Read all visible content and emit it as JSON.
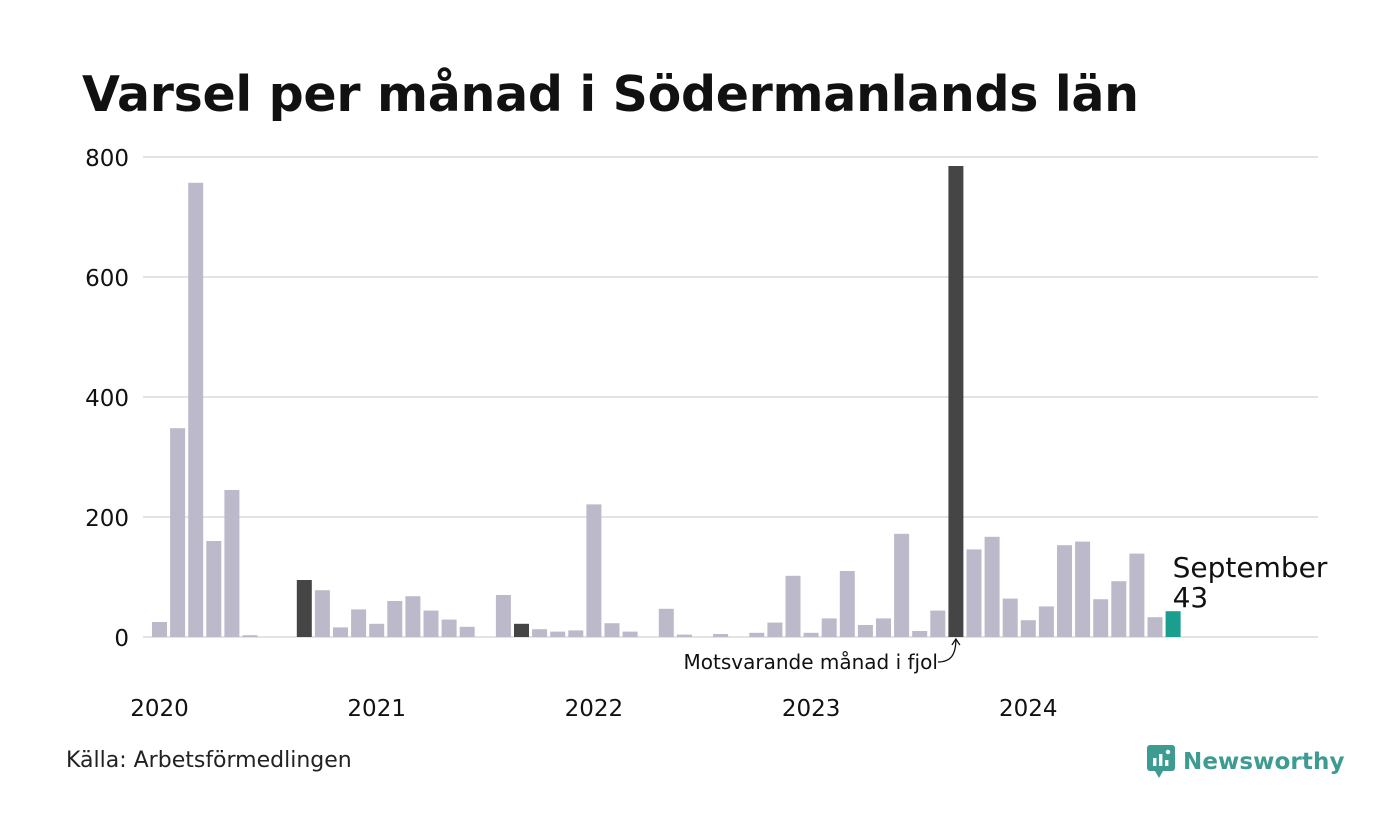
{
  "chart_data": {
    "type": "bar",
    "title": "Varsel per månad i Södermanlands län",
    "xlabel": "",
    "ylabel": "",
    "ylim": [
      0,
      800
    ],
    "yticks": [
      0,
      200,
      400,
      600,
      800
    ],
    "grid": true,
    "year_labels": [
      "2020",
      "2021",
      "2022",
      "2023",
      "2024"
    ],
    "start_month": "2020-01",
    "values": [
      25,
      348,
      757,
      160,
      245,
      3,
      0,
      0,
      95,
      78,
      16,
      46,
      22,
      60,
      68,
      44,
      29,
      17,
      0,
      70,
      22,
      13,
      9,
      11,
      221,
      23,
      9,
      0,
      47,
      4,
      0,
      5,
      0,
      7,
      24,
      102,
      7,
      31,
      110,
      20,
      31,
      172,
      10,
      44,
      785,
      146,
      167,
      64,
      28,
      51,
      153,
      159,
      63,
      93,
      139,
      33,
      43
    ],
    "highlight_dark": [
      "2020-09",
      "2021-09",
      "2023-09"
    ],
    "highlight_current": "2024-09",
    "colors": {
      "default": "#bcbaca",
      "dark": "#454545",
      "current": "#1a9e8e",
      "grid": "#e3e3e3"
    },
    "annotations": {
      "current_month": "September",
      "current_value": "43",
      "previous_year": "Motsvarande månad i fjol"
    }
  },
  "footer": {
    "source": "Källa: Arbetsförmedlingen",
    "brand": "Newsworthy",
    "brand_icon": "newsworthy-logo-icon"
  }
}
